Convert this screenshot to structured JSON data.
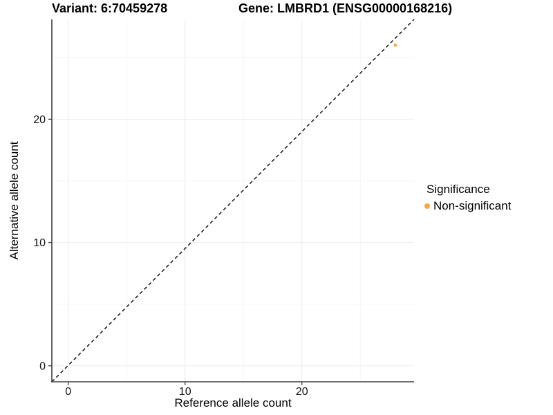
{
  "chart_data": {
    "type": "scatter",
    "title_left": "Variant: 6:70459278",
    "title_right": "Gene: LMBRD1 (ENSG00000168216)",
    "xlabel": "Reference allele count",
    "ylabel": "Alternative allele count",
    "x_ticks": [
      0,
      10,
      20
    ],
    "y_ticks": [
      0,
      10,
      20
    ],
    "x_minor_ticks": [
      5,
      15,
      25
    ],
    "y_minor_ticks": [
      5,
      15,
      25
    ],
    "xlim": [
      -1.4,
      29.6
    ],
    "ylim": [
      -1.3,
      28.1
    ],
    "grid": "major and minor gridlines, very light, panel open at top/right",
    "points": [
      {
        "x": 28,
        "y": 26,
        "series": "Non-significant"
      }
    ],
    "reference_line": {
      "equation": "y = x",
      "style": "dashed",
      "color": "#000000"
    },
    "legend": {
      "position": "right",
      "title": "Significance",
      "items": [
        {
          "label": "Non-significant",
          "color": "#F9A643"
        }
      ]
    },
    "colors": {
      "point": "#F9A643",
      "axis": "#404040",
      "tick_text": "#111111",
      "grid_major": "#EBEBEB",
      "grid_minor": "#F5F5F5",
      "text": "#000000"
    }
  }
}
